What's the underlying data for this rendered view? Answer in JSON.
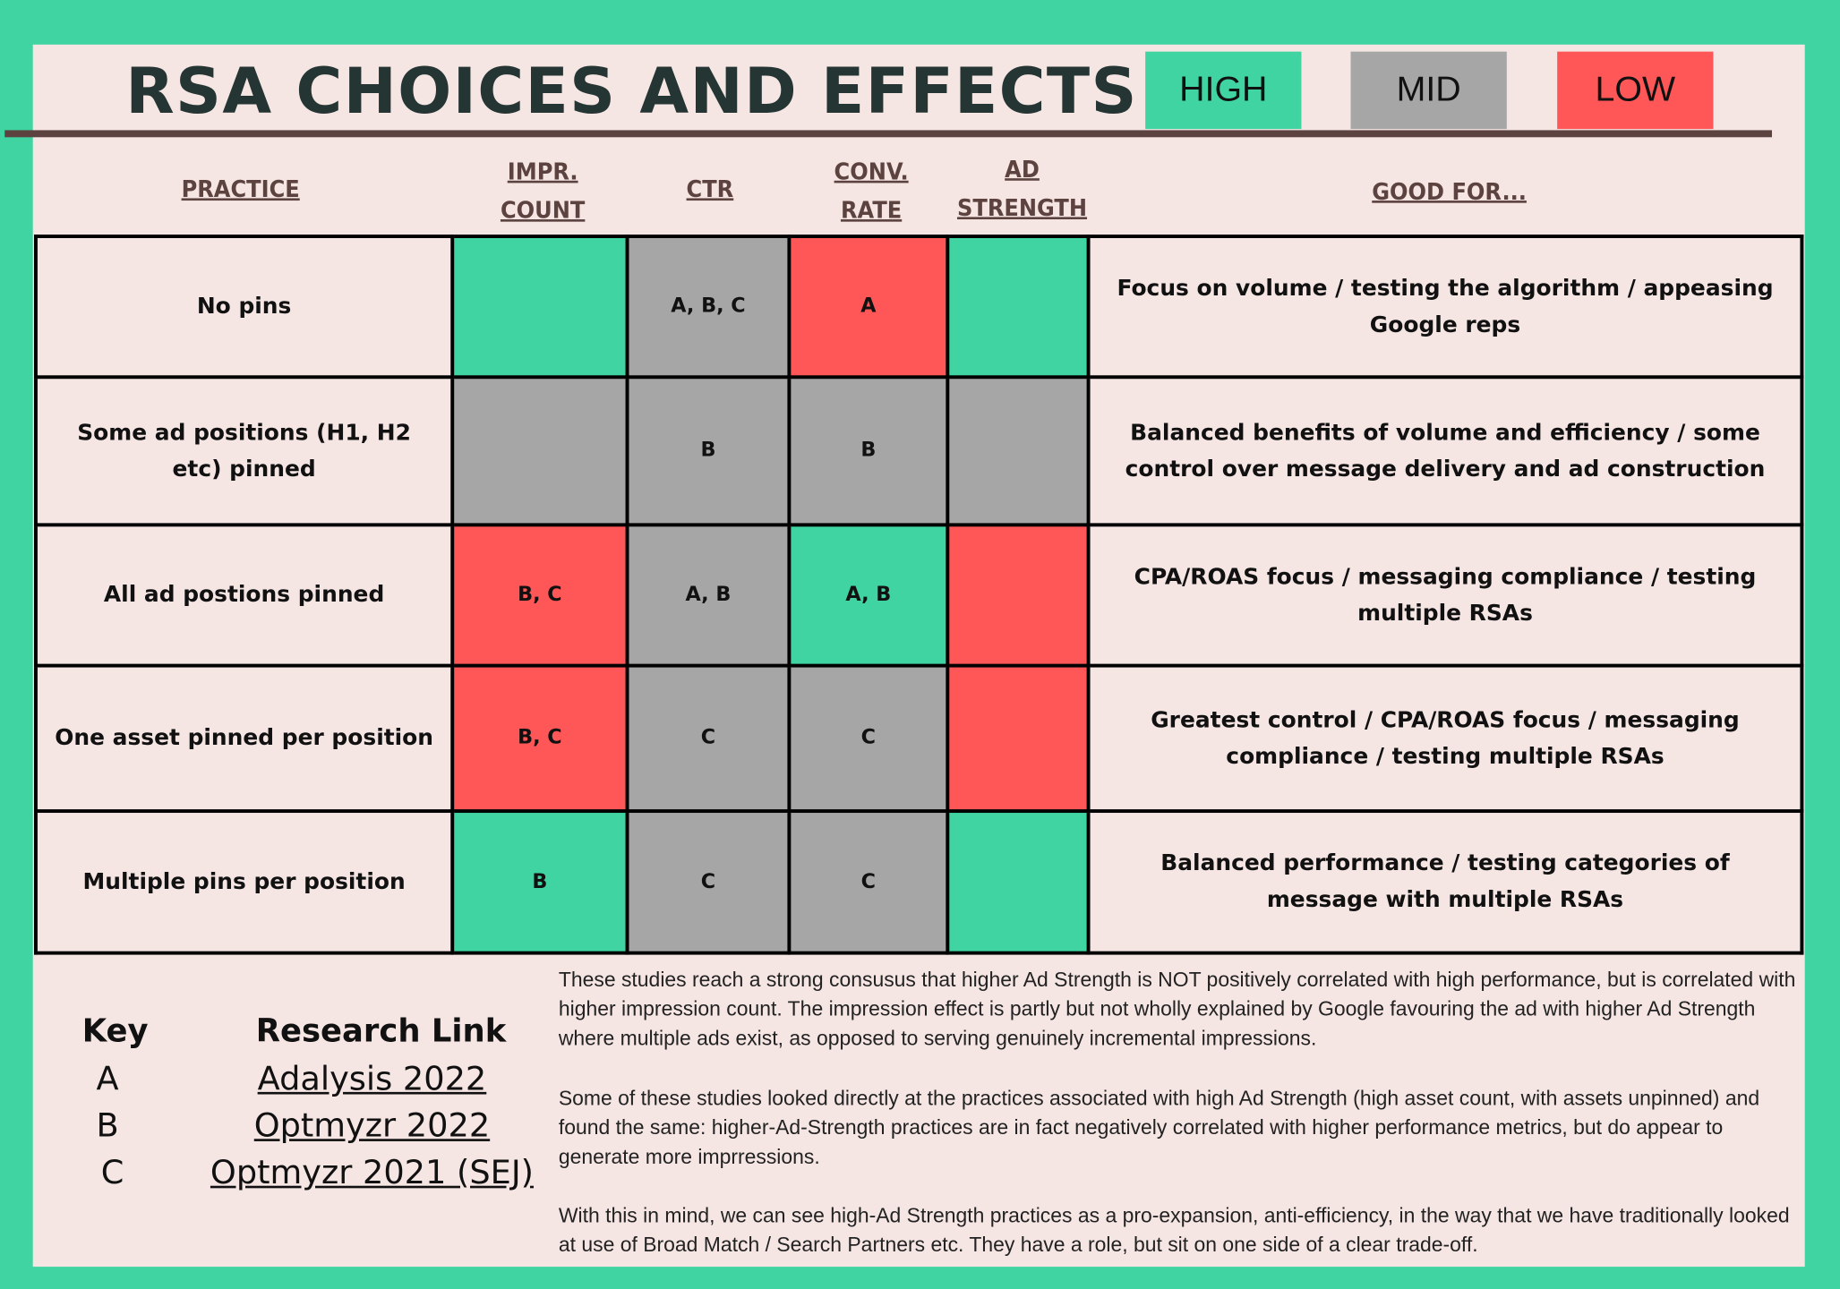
{
  "title": "RSA CHOICES AND EFFECTS",
  "legend": [
    {
      "label": "HIGH",
      "color": "#3fd4a1"
    },
    {
      "label": "MID",
      "color": "#a6a6a6"
    },
    {
      "label": "LOW",
      "color": "#ff5757"
    }
  ],
  "headers": {
    "practice": "PRACTICE",
    "impr_1": "IMPR.",
    "impr_2": "COUNT",
    "ctr": "CTR",
    "conv_1": "CONV.",
    "conv_2": "RATE",
    "ad_1": "AD",
    "ad_2": "STRENGTH",
    "good": "GOOD FOR..."
  },
  "rows": [
    {
      "practice": "No pins",
      "impr": {
        "level": "HIGH",
        "text": ""
      },
      "ctr": {
        "level": "MID",
        "text": "A, B, C"
      },
      "conv": {
        "level": "LOW",
        "text": "A"
      },
      "ad": {
        "level": "HIGH",
        "text": ""
      },
      "good": "Focus on volume / testing the algorithm / appeasing Google reps"
    },
    {
      "practice": "Some ad positions (H1, H2 etc) pinned",
      "impr": {
        "level": "MID",
        "text": ""
      },
      "ctr": {
        "level": "MID",
        "text": "B"
      },
      "conv": {
        "level": "MID",
        "text": "B"
      },
      "ad": {
        "level": "MID",
        "text": ""
      },
      "good": "Balanced benefits of volume and efficiency / some control over message delivery and ad construction"
    },
    {
      "practice": "All ad postions pinned",
      "impr": {
        "level": "LOW",
        "text": "B, C"
      },
      "ctr": {
        "level": "MID",
        "text": "A, B"
      },
      "conv": {
        "level": "HIGH",
        "text": "A, B"
      },
      "ad": {
        "level": "LOW",
        "text": ""
      },
      "good": "CPA/ROAS focus / messaging compliance / testing multiple RSAs"
    },
    {
      "practice": "One asset pinned per position",
      "impr": {
        "level": "LOW",
        "text": "B, C"
      },
      "ctr": {
        "level": "MID",
        "text": "C"
      },
      "conv": {
        "level": "MID",
        "text": "C"
      },
      "ad": {
        "level": "LOW",
        "text": ""
      },
      "good": "Greatest control / CPA/ROAS focus / messaging compliance / testing multiple RSAs"
    },
    {
      "practice": "Multiple pins per position",
      "impr": {
        "level": "HIGH",
        "text": "B"
      },
      "ctr": {
        "level": "MID",
        "text": "C"
      },
      "conv": {
        "level": "MID",
        "text": "C"
      },
      "ad": {
        "level": "HIGH",
        "text": ""
      },
      "good": "Balanced performance / testing categories of message with multiple RSAs"
    }
  ],
  "key": {
    "heading": "Key",
    "links_heading": "Research Link",
    "items": [
      {
        "key": "A",
        "link": "Adalysis 2022"
      },
      {
        "key": "B",
        "link": "Optmyzr 2022"
      },
      {
        "key": "C",
        "link": "Optmyzr 2021 (SEJ)"
      }
    ]
  },
  "paragraphs": [
    "These studies reach a strong consusus that higher Ad Strength is NOT positively correlated with high performance, but is correlated with higher impression count. The impression effect is partly but not wholly explained by Google favouring the ad with higher Ad Strength where multiple ads exist, as opposed to serving genuinely incremental impressions.",
    "Some of these studies looked directly at the practices associated with high Ad Strength (high asset count, with assets unpinned) and found the same: higher-Ad-Strength practices are in fact negatively correlated with higher performance metrics, but do appear to generate more imprressions.",
    "With this in mind, we can see high-Ad Strength practices as a pro-expansion, anti-efficiency, in the way that we have traditionally looked at use of Broad Match / Search Partners etc. They have a role, but sit on one side of a clear trade-off."
  ]
}
